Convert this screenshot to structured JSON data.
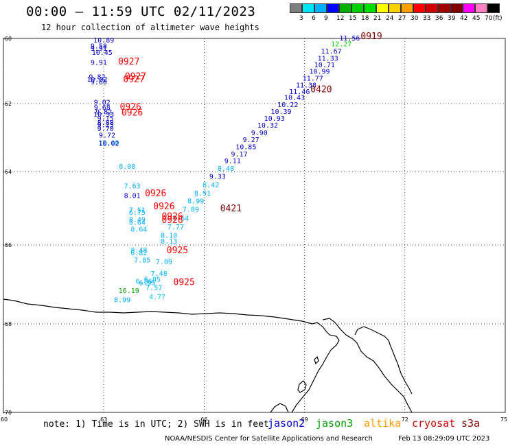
{
  "header": {
    "title": "00:00 – 11:59 UTC 02/11/2023",
    "subtitle": "12 hour collection of altimeter wave heights"
  },
  "colorbar": {
    "labels": [
      "3",
      "6",
      "9",
      "12",
      "15",
      "18",
      "21",
      "24",
      "27",
      "30",
      "33",
      "36",
      "39",
      "42",
      "45",
      "70"
    ],
    "unit": "(ft)",
    "colors": [
      "#7f7f7f",
      "#00e5ff",
      "#00b0ff",
      "#0000ff",
      "#00b000",
      "#00d000",
      "#00e000",
      "#ffff00",
      "#ffd000",
      "#ffa000",
      "#ff0000",
      "#d00000",
      "#a00000",
      "#800000",
      "#ff00ff",
      "#ff80c0",
      "#000000"
    ]
  },
  "map_axes": {
    "x_ticks": [
      "60",
      "63",
      "66",
      "69",
      "72",
      "75"
    ],
    "y_ticks": [
      "-60",
      "-62",
      "-64",
      "-66",
      "-68",
      "-70"
    ]
  },
  "observations": [
    {
      "t": "10.89",
      "c": "#0000cc",
      "lon": 63.0,
      "lat": -60.13
    },
    {
      "t": "9.58",
      "c": "#0000cc",
      "lon": 62.85,
      "lat": -60.3
    },
    {
      "t": "9.91",
      "c": "#0000cc",
      "lon": 62.85,
      "lat": -60.38
    },
    {
      "t": "10.45",
      "c": "#0000cc",
      "lon": 62.95,
      "lat": -60.51
    },
    {
      "t": "9.91",
      "c": "#0000cc",
      "lon": 62.85,
      "lat": -60.81
    },
    {
      "t": "9.82",
      "c": "#0000cc",
      "lon": 62.8,
      "lat": -61.25
    },
    {
      "t": "10.02",
      "c": "#0000cc",
      "lon": 62.8,
      "lat": -61.33
    },
    {
      "t": "9.60",
      "c": "#0000cc",
      "lon": 62.85,
      "lat": -61.41
    },
    {
      "t": "9.02",
      "c": "#0000cc",
      "lon": 62.95,
      "lat": -62.03
    },
    {
      "t": "9.68",
      "c": "#0000cc",
      "lon": 62.95,
      "lat": -62.18
    },
    {
      "t": "9.82",
      "c": "#0000cc",
      "lon": 63.0,
      "lat": -62.31
    },
    {
      "t": "10.33",
      "c": "#0000cc",
      "lon": 63.0,
      "lat": -62.38
    },
    {
      "t": "9.15",
      "c": "#0000cc",
      "lon": 63.05,
      "lat": -62.5
    },
    {
      "t": "8.88",
      "c": "#0000cc",
      "lon": 63.05,
      "lat": -62.63
    },
    {
      "t": "9.25",
      "c": "#0000cc",
      "lon": 63.05,
      "lat": -62.7
    },
    {
      "t": "9.70",
      "c": "#0000cc",
      "lon": 63.05,
      "lat": -62.81
    },
    {
      "t": "9.72",
      "c": "#0000cc",
      "lon": 63.1,
      "lat": -63.0
    },
    {
      "t": "10.00",
      "c": "#00b0ff",
      "lon": 63.15,
      "lat": -63.22
    },
    {
      "t": "10.02",
      "c": "#0000cc",
      "lon": 63.15,
      "lat": -63.24
    },
    {
      "t": "8.08",
      "c": "#00b0ff",
      "lon": 63.7,
      "lat": -63.92
    },
    {
      "t": "7.63",
      "c": "#00b0ff",
      "lon": 63.85,
      "lat": -64.46
    },
    {
      "t": "8.01",
      "c": "#0000cc",
      "lon": 63.85,
      "lat": -64.72
    },
    {
      "t": "7.51",
      "c": "#00b0ff",
      "lon": 64.0,
      "lat": -65.11
    },
    {
      "t": "6.75",
      "c": "#00b0ff",
      "lon": 64.0,
      "lat": -65.18
    },
    {
      "t": "8.49",
      "c": "#00b0ff",
      "lon": 64.0,
      "lat": -65.37
    },
    {
      "t": "8.64",
      "c": "#00b0ff",
      "lon": 64.0,
      "lat": -65.45
    },
    {
      "t": "8.64",
      "c": "#00b0ff",
      "lon": 64.05,
      "lat": -65.64
    },
    {
      "t": "8.48",
      "c": "#00b0ff",
      "lon": 64.05,
      "lat": -66.19
    },
    {
      "t": "6.82",
      "c": "#00b0ff",
      "lon": 64.05,
      "lat": -66.26
    },
    {
      "t": "7.85",
      "c": "#00b0ff",
      "lon": 64.15,
      "lat": -66.44
    },
    {
      "t": "7.09",
      "c": "#00b0ff",
      "lon": 64.8,
      "lat": -66.49
    },
    {
      "t": "7.48",
      "c": "#00b0ff",
      "lon": 64.65,
      "lat": -66.78
    },
    {
      "t": "6.85",
      "c": "#00b0ff",
      "lon": 64.45,
      "lat": -66.93
    },
    {
      "t": "6.86",
      "c": "#00b0ff",
      "lon": 64.2,
      "lat": -66.98
    },
    {
      "t": "6.95",
      "c": "#00b0ff",
      "lon": 64.3,
      "lat": -67.02
    },
    {
      "t": "7.57",
      "c": "#00b0ff",
      "lon": 64.5,
      "lat": -67.14
    },
    {
      "t": "16.19",
      "c": "#00a000",
      "lon": 63.75,
      "lat": -67.22
    },
    {
      "t": "4.77",
      "c": "#00d0e0",
      "lon": 64.6,
      "lat": -67.37
    },
    {
      "t": "8.99",
      "c": "#00b0ff",
      "lon": 63.55,
      "lat": -67.45
    },
    {
      "t": "11.56",
      "c": "#0000cc",
      "lon": 70.35,
      "lat": -60.06
    },
    {
      "t": "12.27",
      "c": "#00d000",
      "lon": 70.1,
      "lat": -60.24
    },
    {
      "t": "11.67",
      "c": "#0000cc",
      "lon": 69.8,
      "lat": -60.46
    },
    {
      "t": "11.33",
      "c": "#0000cc",
      "lon": 69.7,
      "lat": -60.68
    },
    {
      "t": "10.71",
      "c": "#0000cc",
      "lon": 69.6,
      "lat": -60.88
    },
    {
      "t": "10.99",
      "c": "#0000cc",
      "lon": 69.45,
      "lat": -61.08
    },
    {
      "t": "11.77",
      "c": "#0000cc",
      "lon": 69.25,
      "lat": -61.29
    },
    {
      "t": "11.38",
      "c": "#0000cc",
      "lon": 69.05,
      "lat": -61.5
    },
    {
      "t": "11.46",
      "c": "#0000cc",
      "lon": 68.85,
      "lat": -61.7
    },
    {
      "t": "10.43",
      "c": "#0000cc",
      "lon": 68.7,
      "lat": -61.88
    },
    {
      "t": "10.22",
      "c": "#0000cc",
      "lon": 68.5,
      "lat": -62.1
    },
    {
      "t": "10.39",
      "c": "#0000cc",
      "lon": 68.3,
      "lat": -62.3
    },
    {
      "t": "10.93",
      "c": "#0000cc",
      "lon": 68.1,
      "lat": -62.5
    },
    {
      "t": "10.32",
      "c": "#0000cc",
      "lon": 67.9,
      "lat": -62.71
    },
    {
      "t": "9.90",
      "c": "#0000cc",
      "lon": 67.65,
      "lat": -62.93
    },
    {
      "t": "9.27",
      "c": "#0000cc",
      "lon": 67.4,
      "lat": -63.13
    },
    {
      "t": "10.85",
      "c": "#0000cc",
      "lon": 67.25,
      "lat": -63.34
    },
    {
      "t": "9.17",
      "c": "#0000cc",
      "lon": 67.05,
      "lat": -63.56
    },
    {
      "t": "9.11",
      "c": "#0000cc",
      "lon": 66.85,
      "lat": -63.76
    },
    {
      "t": "8.48",
      "c": "#00b0ff",
      "lon": 66.65,
      "lat": -63.98
    },
    {
      "t": "9.33",
      "c": "#0000cc",
      "lon": 66.4,
      "lat": -64.2
    },
    {
      "t": "8.42",
      "c": "#00b0ff",
      "lon": 66.2,
      "lat": -64.43
    },
    {
      "t": "8.91",
      "c": "#00b0ff",
      "lon": 65.95,
      "lat": -64.65
    },
    {
      "t": "8.99",
      "c": "#00b0ff",
      "lon": 65.75,
      "lat": -64.87
    },
    {
      "t": "7.89",
      "c": "#00b0ff",
      "lon": 65.6,
      "lat": -65.09
    },
    {
      "t": "7.64",
      "c": "#00b0ff",
      "lon": 65.3,
      "lat": -65.34
    },
    {
      "t": "7.77",
      "c": "#00b0ff",
      "lon": 65.15,
      "lat": -65.57
    },
    {
      "t": "8.10",
      "c": "#00b0ff",
      "lon": 64.95,
      "lat": -65.8
    },
    {
      "t": "8.13",
      "c": "#00b0ff",
      "lon": 64.95,
      "lat": -65.96
    },
    {
      "t": "0919",
      "c": "#800000",
      "lon": 71.0,
      "lat": -60.02,
      "big": true
    },
    {
      "t": "0927",
      "c": "#ff0000",
      "lon": 63.75,
      "lat": -60.8,
      "big": true
    },
    {
      "t": "0927",
      "c": "#ff0000",
      "lon": 63.95,
      "lat": -61.25,
      "big": true
    },
    {
      "t": "0927",
      "c": "#ff0000",
      "lon": 63.9,
      "lat": -61.35,
      "big": true
    },
    {
      "t": "0420",
      "c": "#800000",
      "lon": 69.5,
      "lat": -61.65,
      "big": true
    },
    {
      "t": "0926",
      "c": "#ff0000",
      "lon": 63.8,
      "lat": -62.18,
      "big": true
    },
    {
      "t": "0926",
      "c": "#ff0000",
      "lon": 63.85,
      "lat": -62.35,
      "big": true
    },
    {
      "t": "0926",
      "c": "#ff0000",
      "lon": 64.55,
      "lat": -64.67,
      "big": true
    },
    {
      "t": "0926",
      "c": "#ff0000",
      "lon": 64.8,
      "lat": -65.03,
      "big": true
    },
    {
      "t": "0926",
      "c": "#ff0000",
      "lon": 65.05,
      "lat": -65.3,
      "big": true
    },
    {
      "t": "0926",
      "c": "#ff0000",
      "lon": 65.05,
      "lat": -65.4,
      "big": true
    },
    {
      "t": "0421",
      "c": "#800000",
      "lon": 66.8,
      "lat": -65.08,
      "big": true
    },
    {
      "t": "0925",
      "c": "#ff0000",
      "lon": 65.2,
      "lat": -66.21,
      "big": true
    },
    {
      "t": "0925",
      "c": "#ff0000",
      "lon": 65.4,
      "lat": -67.02,
      "big": true
    }
  ],
  "legend": {
    "note": "note: 1) Time is in UTC; 2) SWH is in feet",
    "satellites": [
      {
        "name": "jason2",
        "color": "#0000cc"
      },
      {
        "name": "jason3",
        "color": "#00a000"
      },
      {
        "name": "altika",
        "color": "#ff9900"
      },
      {
        "name": "cryosat",
        "color": "#cc0000"
      },
      {
        "name": "s3a",
        "color": "#800000"
      }
    ]
  },
  "footer": {
    "credit": "NOAA/NESDIS Center for Satellite Applications and Research",
    "timestamp": "Feb 13 08:29:09 UTC 2023"
  }
}
